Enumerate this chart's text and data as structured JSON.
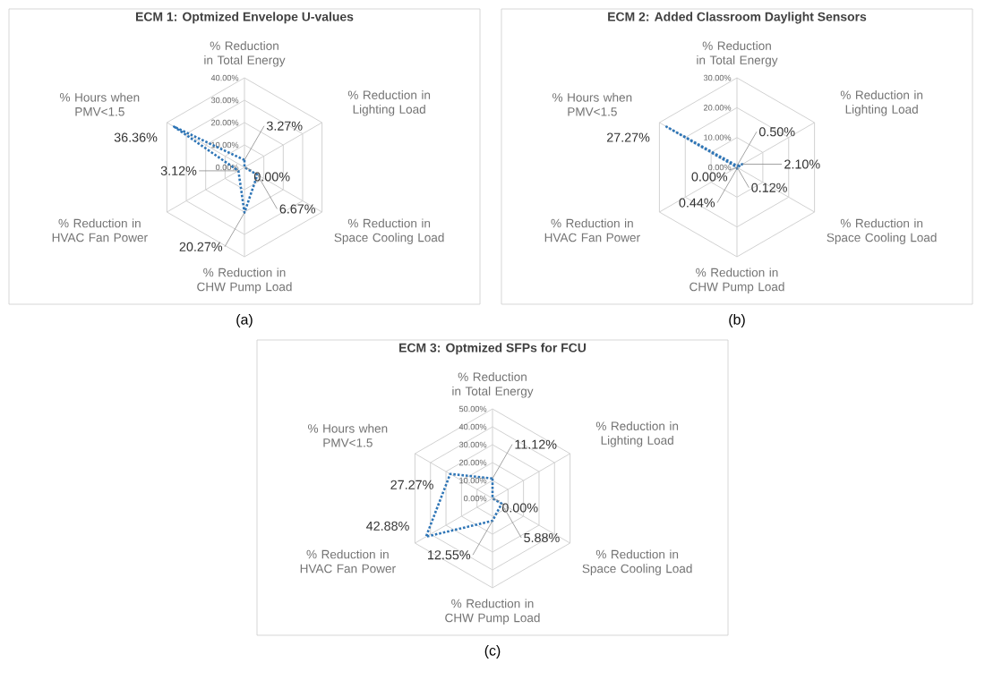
{
  "chart_data": [
    {
      "type": "radar",
      "title": "ECM 1: Optmized Envelope U-values",
      "categories": [
        "% Reduction in Total Energy",
        "% Reduction in Lighting Load",
        "% Reduction in Space Cooling Load",
        "% Reduction in CHW Pump Load",
        "% Reduction in HVAC Fan Power",
        "% Hours when PMV<1.5"
      ],
      "series": [
        {
          "color": "#2e75b6",
          "values": [
            3.27,
            0.0,
            6.67,
            20.27,
            3.12,
            36.36
          ],
          "value_labels": [
            "3.27%",
            "0.00%",
            "6.67%",
            "20.27%",
            "3.12%",
            "36.36%"
          ]
        }
      ],
      "ylim": [
        0,
        40
      ],
      "yticks": [
        {
          "value": 0,
          "label": "0.00%"
        },
        {
          "value": 10,
          "label": "10.00%"
        },
        {
          "value": 20,
          "label": "20.00%"
        },
        {
          "value": 30,
          "label": "30.00%"
        },
        {
          "value": 40,
          "label": "40.00%"
        }
      ],
      "grid": true,
      "line_style": "dotted",
      "annotations": [
        "(a)"
      ]
    },
    {
      "type": "radar",
      "title": "ECM 2: Added Classroom Daylight Sensors",
      "categories": [
        "% Reduction in Total Energy",
        "% Reduction in Lighting Load",
        "% Reduction in Space Cooling Load",
        "% Reduction in CHW Pump Load",
        "% Reduction in HVAC Fan Power",
        "% Hours when PMV<1.5"
      ],
      "series": [
        {
          "color": "#2e75b6",
          "values": [
            0.5,
            2.1,
            0.12,
            0.44,
            0.0,
            27.27
          ],
          "value_labels": [
            "0.50%",
            "2.10%",
            "0.12%",
            "0.44%",
            "0.00%",
            "27.27%"
          ]
        }
      ],
      "ylim": [
        0,
        30
      ],
      "yticks": [
        {
          "value": 0,
          "label": "0.00%"
        },
        {
          "value": 10,
          "label": "10.00%"
        },
        {
          "value": 20,
          "label": "20.00%"
        },
        {
          "value": 30,
          "label": "30.00%"
        }
      ],
      "grid": true,
      "line_style": "dotted",
      "annotations": [
        "(b)"
      ]
    },
    {
      "type": "radar",
      "title": "ECM 3: Optmized SFPs for FCU",
      "categories": [
        "% Reduction in Total Energy",
        "% Reduction in Lighting Load",
        "% Reduction in Space Cooling Load",
        "% Reduction in CHW Pump Load",
        "% Reduction in HVAC Fan Power",
        "% Hours when PMV<1.5"
      ],
      "series": [
        {
          "color": "#2e75b6",
          "values": [
            11.12,
            0.0,
            5.88,
            12.55,
            42.88,
            27.27
          ],
          "value_labels": [
            "11.12%",
            "0.00%",
            "5.88%",
            "12.55%",
            "42.88%",
            "27.27%"
          ]
        }
      ],
      "ylim": [
        0,
        50
      ],
      "yticks": [
        {
          "value": 0,
          "label": "0.00%"
        },
        {
          "value": 10,
          "label": "10.00%"
        },
        {
          "value": 20,
          "label": "20.00%"
        },
        {
          "value": 30,
          "label": "30.00%"
        },
        {
          "value": 40,
          "label": "40.00%"
        },
        {
          "value": 50,
          "label": "50.00%"
        }
      ],
      "grid": true,
      "line_style": "dotted",
      "annotations": [
        "(c)"
      ]
    }
  ]
}
